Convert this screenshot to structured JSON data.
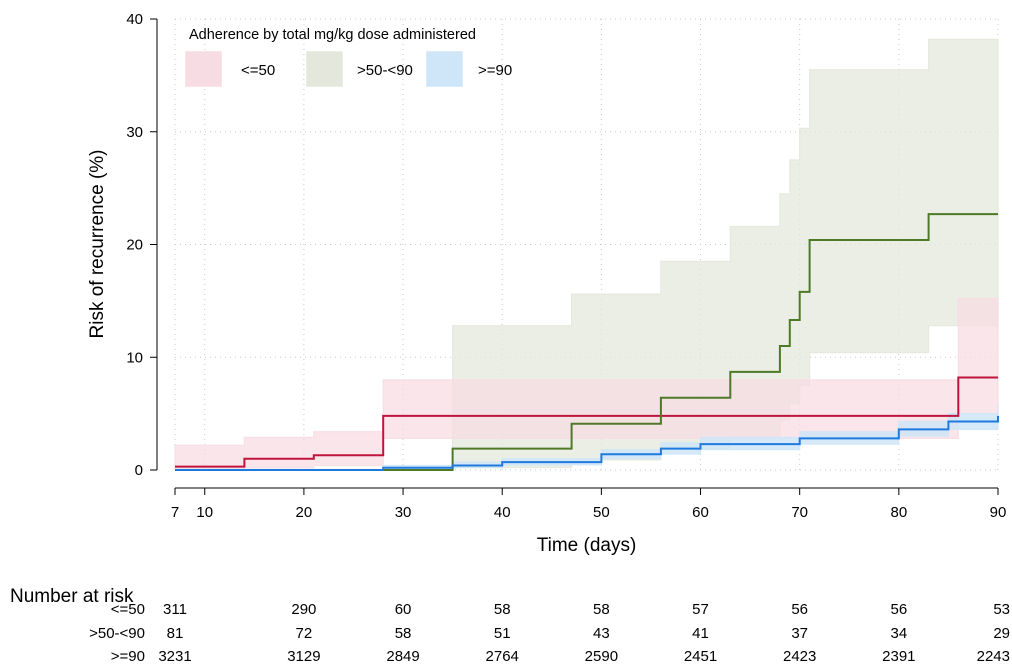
{
  "chart_data": {
    "type": "line",
    "subtype": "kaplan-meier step curves with confidence bands",
    "xlabel": "Time (days)",
    "ylabel": "Risk of recurrence (%)",
    "xlim": [
      7,
      90
    ],
    "ylim": [
      0,
      40
    ],
    "xticks": [
      7,
      10,
      20,
      30,
      40,
      50,
      60,
      70,
      80,
      90
    ],
    "yticks": [
      0,
      10,
      20,
      30,
      40
    ],
    "grid": true,
    "legend": {
      "title": "Adherence by total mg/kg dose administered",
      "placement": "top-left",
      "entries": [
        "<=50",
        ">50-<90",
        ">=90"
      ]
    },
    "colors": {
      "<=50": {
        "line": "#c0143c",
        "band": "#f7dce3"
      },
      ">50-<90": {
        "line": "#4e7a28",
        "band": "#e4e8dc"
      },
      ">=90": {
        "line": "#1f7ae0",
        "band": "#cfe5f8"
      }
    },
    "series": [
      {
        "name": "<=50",
        "x": [
          7,
          14,
          21,
          28,
          86,
          90
        ],
        "y": [
          0.3,
          1.0,
          1.3,
          4.8,
          8.2,
          8.2
        ],
        "ci_lower": [
          0.0,
          0.2,
          0.4,
          2.8,
          5.0,
          5.0
        ],
        "ci_upper": [
          2.2,
          2.9,
          3.4,
          8.0,
          15.2,
          15.2
        ]
      },
      {
        "name": ">50-<90",
        "x": [
          7,
          35,
          47,
          56,
          63,
          68,
          69,
          70,
          71,
          83,
          90
        ],
        "y": [
          0.0,
          1.9,
          4.1,
          6.4,
          8.7,
          11.0,
          13.3,
          15.8,
          20.4,
          22.7,
          22.7
        ],
        "ci_lower": [
          0.0,
          0.2,
          0.9,
          1.9,
          3.0,
          4.4,
          5.9,
          7.5,
          10.4,
          12.8,
          12.8
        ],
        "ci_upper": [
          0.0,
          12.8,
          15.6,
          18.5,
          21.6,
          24.5,
          27.5,
          30.3,
          35.5,
          38.2,
          38.2
        ]
      },
      {
        "name": ">=90",
        "x": [
          7,
          28,
          35,
          40,
          50,
          56,
          60,
          70,
          80,
          85,
          90
        ],
        "y": [
          0.0,
          0.2,
          0.4,
          0.7,
          1.4,
          1.9,
          2.3,
          2.8,
          3.6,
          4.3,
          4.8
        ],
        "ci_lower": [
          0.0,
          0.05,
          0.2,
          0.45,
          1.0,
          1.4,
          1.8,
          2.3,
          3.0,
          3.6,
          4.1
        ],
        "ci_upper": [
          0.05,
          0.4,
          0.7,
          1.0,
          1.8,
          2.4,
          2.9,
          3.4,
          4.3,
          5.0,
          5.8
        ]
      }
    ],
    "risk_table": {
      "title": "Number at risk",
      "times": [
        7,
        20,
        30,
        40,
        50,
        60,
        70,
        80,
        90
      ],
      "rows": [
        {
          "label": "<=50",
          "values": [
            "311",
            "290",
            "60",
            "58",
            "58",
            "57",
            "56",
            "56",
            "53"
          ]
        },
        {
          "label": ">50-<90",
          "values": [
            "81",
            "72",
            "58",
            "51",
            "43",
            "41",
            "37",
            "34",
            "29"
          ]
        },
        {
          "label": ">=90",
          "values": [
            "3231",
            "3129",
            "2849",
            "2764",
            "2590",
            "2451",
            "2423",
            "2391",
            "2243"
          ]
        }
      ]
    }
  }
}
